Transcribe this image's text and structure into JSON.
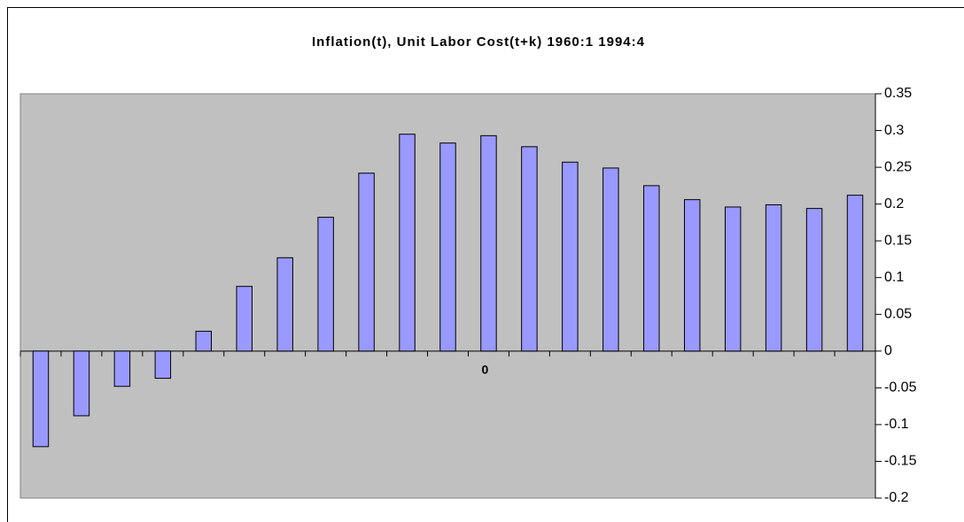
{
  "chart_data": {
    "type": "bar",
    "title": "Inflation(t), Unit Labor Cost(t+k) 1960:1 1994:4",
    "categories": [
      null,
      null,
      null,
      null,
      null,
      null,
      null,
      null,
      null,
      null,
      null,
      "0",
      null,
      null,
      null,
      null,
      null,
      null,
      null,
      null,
      null
    ],
    "values": [
      -0.13,
      -0.088,
      -0.048,
      -0.037,
      0.027,
      0.088,
      0.127,
      0.182,
      0.242,
      0.295,
      0.283,
      0.293,
      0.278,
      0.257,
      0.249,
      0.225,
      0.206,
      0.196,
      0.199,
      0.194,
      0.212
    ],
    "color": "#9999ff",
    "ylim": [
      -0.2,
      0.35
    ],
    "yticks": [
      -0.2,
      -0.15,
      -0.1,
      -0.05,
      0,
      0.05,
      0.1,
      0.15,
      0.2,
      0.25,
      0.3,
      0.35
    ],
    "grid": false
  }
}
